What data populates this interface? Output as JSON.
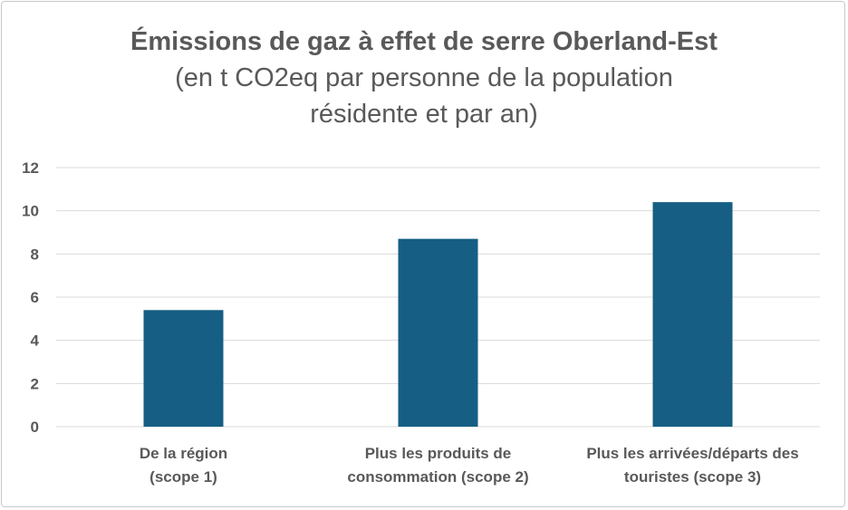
{
  "chart_data": {
    "type": "bar",
    "title": "Émissions de gaz à effet de serre Oberland-Est",
    "subtitle_lines": [
      "(en t CO2eq par personne de la population",
      "résidente et par an)"
    ],
    "categories": [
      [
        "De la région",
        "(scope 1)"
      ],
      [
        "Plus les produits de",
        "consommation (scope 2)"
      ],
      [
        "Plus les arrivées/départs des",
        "touristes (scope 3)"
      ]
    ],
    "values": [
      5.4,
      8.7,
      10.4
    ],
    "ylim": [
      0,
      12
    ],
    "yticks": [
      0,
      2,
      4,
      6,
      8,
      10,
      12
    ],
    "xlabel": "",
    "ylabel": "",
    "grid": true,
    "bar_color": "#165e83",
    "grid_color": "#d9d9d9",
    "text_color": "#595959"
  }
}
